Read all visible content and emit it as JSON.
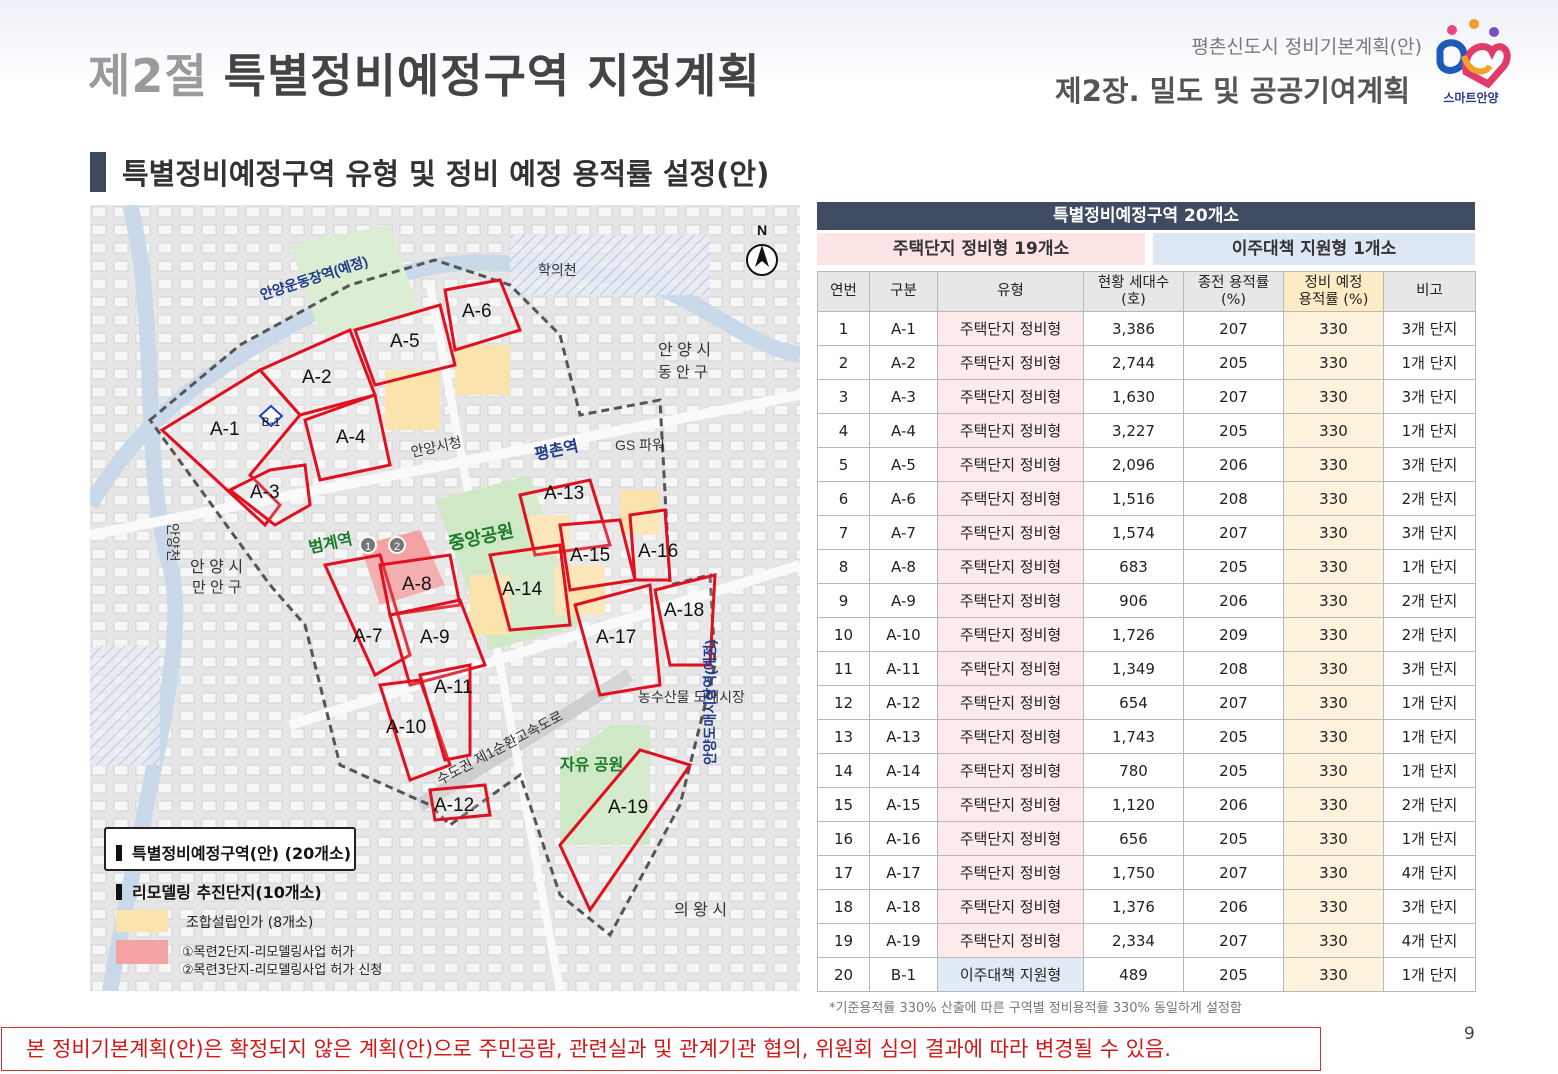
{
  "header": {
    "section_num": "제2절",
    "section_title": "특별정비예정구역 지정계획",
    "doc_title": "평촌신도시 정비기본계획(안)",
    "chapter": "제2장. 밀도 및 공공기여계획",
    "logo_text": "스마트안양"
  },
  "subheading": "특별정비예정구역 유형 및 정비 예정 용적률 설정(안)",
  "map": {
    "north": "N",
    "zone_labels": [
      "A-1",
      "A-2",
      "A-3",
      "A-4",
      "A-5",
      "A-6",
      "A-7",
      "A-8",
      "A-9",
      "A-10",
      "A-11",
      "A-12",
      "A-13",
      "A-14",
      "A-15",
      "A-16",
      "A-17",
      "A-18",
      "A-19",
      "B-1"
    ],
    "place_labels": {
      "station_sports": "안양운동장역(예정)",
      "stream_hakui": "학의천",
      "dongan": "안 양 시",
      "dongan_gu": "동 안 구",
      "city_hall": "안양시청",
      "pyeongchon": "평촌역",
      "gs_tower": "GS 파워",
      "stream_anyang": "안양천",
      "beomgye": "범계역",
      "central_park": "중앙공원",
      "manan": "안 양 시",
      "manan_gu": "만 안 구",
      "market": "농수산물 도매시장",
      "expressway": "수도권 제1순환고속도로",
      "free_park": "자유 공원",
      "market_station": "안양도매시장역(예정)",
      "uiwang": "의 왕 시",
      "remodel_1": "1",
      "remodel_2": "2"
    },
    "legend": {
      "special_zone": "특별정비예정구역(안) (20개소)",
      "remodel": "리모델링 추진단지(10개소)",
      "union": "조합설립인가 (8개소)",
      "permit_line1": "①목련2단지-리모델링사업 허가",
      "permit_line2": "②목련3단지-리모델링사업 허가 신청"
    }
  },
  "table": {
    "title": "특별정비예정구역 20개소",
    "group_housing": "주택단지 정비형 19개소",
    "group_relocation": "이주대책 지원형 1개소",
    "headers": [
      "연번",
      "구분",
      "유형",
      "현황 세대수\n(호)",
      "종전 용적률\n(%)",
      "정비 예정\n용적률 (%)",
      "비고"
    ],
    "rows": [
      [
        "1",
        "A-1",
        "주택단지 정비형",
        "3,386",
        "207",
        "330",
        "3개 단지"
      ],
      [
        "2",
        "A-2",
        "주택단지 정비형",
        "2,744",
        "205",
        "330",
        "1개 단지"
      ],
      [
        "3",
        "A-3",
        "주택단지 정비형",
        "1,630",
        "207",
        "330",
        "3개 단지"
      ],
      [
        "4",
        "A-4",
        "주택단지 정비형",
        "3,227",
        "205",
        "330",
        "1개 단지"
      ],
      [
        "5",
        "A-5",
        "주택단지 정비형",
        "2,096",
        "206",
        "330",
        "3개 단지"
      ],
      [
        "6",
        "A-6",
        "주택단지 정비형",
        "1,516",
        "208",
        "330",
        "2개 단지"
      ],
      [
        "7",
        "A-7",
        "주택단지 정비형",
        "1,574",
        "207",
        "330",
        "3개 단지"
      ],
      [
        "8",
        "A-8",
        "주택단지 정비형",
        "683",
        "205",
        "330",
        "1개 단지"
      ],
      [
        "9",
        "A-9",
        "주택단지 정비형",
        "906",
        "206",
        "330",
        "2개 단지"
      ],
      [
        "10",
        "A-10",
        "주택단지 정비형",
        "1,726",
        "209",
        "330",
        "2개 단지"
      ],
      [
        "11",
        "A-11",
        "주택단지 정비형",
        "1,349",
        "208",
        "330",
        "3개 단지"
      ],
      [
        "12",
        "A-12",
        "주택단지 정비형",
        "654",
        "207",
        "330",
        "1개 단지"
      ],
      [
        "13",
        "A-13",
        "주택단지 정비형",
        "1,743",
        "205",
        "330",
        "1개 단지"
      ],
      [
        "14",
        "A-14",
        "주택단지 정비형",
        "780",
        "205",
        "330",
        "1개 단지"
      ],
      [
        "15",
        "A-15",
        "주택단지 정비형",
        "1,120",
        "206",
        "330",
        "2개 단지"
      ],
      [
        "16",
        "A-16",
        "주택단지 정비형",
        "656",
        "205",
        "330",
        "1개 단지"
      ],
      [
        "17",
        "A-17",
        "주택단지 정비형",
        "1,750",
        "207",
        "330",
        "4개 단지"
      ],
      [
        "18",
        "A-18",
        "주택단지 정비형",
        "1,376",
        "206",
        "330",
        "3개 단지"
      ],
      [
        "19",
        "A-19",
        "주택단지 정비형",
        "2,334",
        "207",
        "330",
        "4개 단지"
      ],
      [
        "20",
        "B-1",
        "이주대책 지원형",
        "489",
        "205",
        "330",
        "1개 단지"
      ]
    ],
    "footnote": "*기준용적률 330% 산출에 따른 구역별 정비용적률 330% 동일하게 설정함"
  },
  "notice": "본 정비기본계획(안)은 확정되지 않은 계획(안)으로 주민공람, 관련실과 및 관계기관 협의, 위원회 심의 결과에 따라 변경될 수 있음.",
  "page_number": "9",
  "colors": {
    "zone_outline": "#e01020",
    "union_fill": "#fbe3ad",
    "permit_fill": "#f3a3a3",
    "park": "#cfe8c5",
    "header_dark": "#3f4b60"
  }
}
